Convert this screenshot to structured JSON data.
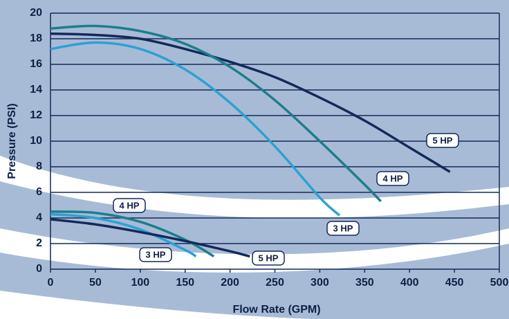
{
  "chart_data": {
    "type": "line",
    "x_label": "Flow Rate (GPM)",
    "y_label": "Pressure (PSI)",
    "xlim": [
      0,
      500
    ],
    "xticks": [
      0,
      50,
      100,
      150,
      200,
      250,
      300,
      350,
      400,
      450,
      500
    ],
    "ylim": [
      0,
      20
    ],
    "yticks": [
      0,
      2,
      4,
      6,
      8,
      10,
      12,
      14,
      16,
      18,
      20
    ],
    "grid": true,
    "series": [
      {
        "name": "5 HP",
        "color": "#14295a",
        "x": [
          0,
          50,
          100,
          150,
          200,
          250,
          300,
          350,
          400,
          445
        ],
        "values": [
          18.4,
          18.3,
          18.0,
          17.2,
          16.2,
          15.0,
          13.4,
          11.6,
          9.5,
          7.6
        ]
      },
      {
        "name": "4 HP",
        "color": "#1d7d8c",
        "x": [
          0,
          50,
          100,
          150,
          200,
          250,
          300,
          350,
          368
        ],
        "values": [
          18.8,
          19.0,
          18.6,
          17.6,
          15.8,
          13.2,
          10.0,
          6.6,
          5.3
        ]
      },
      {
        "name": "3 HP",
        "color": "#2aa2d2",
        "x": [
          0,
          50,
          100,
          150,
          200,
          250,
          300,
          322
        ],
        "values": [
          17.2,
          17.7,
          17.2,
          15.6,
          13.0,
          9.6,
          5.6,
          4.2
        ]
      },
      {
        "name": "4 HP",
        "color": "#1d7d8c",
        "x": [
          0,
          50,
          100,
          150,
          182
        ],
        "values": [
          4.5,
          4.4,
          3.7,
          2.3,
          1.0
        ]
      },
      {
        "name": "3 HP",
        "color": "#2aa2d2",
        "x": [
          0,
          50,
          100,
          150,
          162
        ],
        "values": [
          4.3,
          4.0,
          3.1,
          1.5,
          1.0
        ]
      },
      {
        "name": "5 HP",
        "color": "#14295a",
        "x": [
          0,
          50,
          100,
          150,
          200,
          222
        ],
        "values": [
          3.9,
          3.5,
          2.9,
          2.2,
          1.4,
          1.0
        ]
      }
    ]
  }
}
